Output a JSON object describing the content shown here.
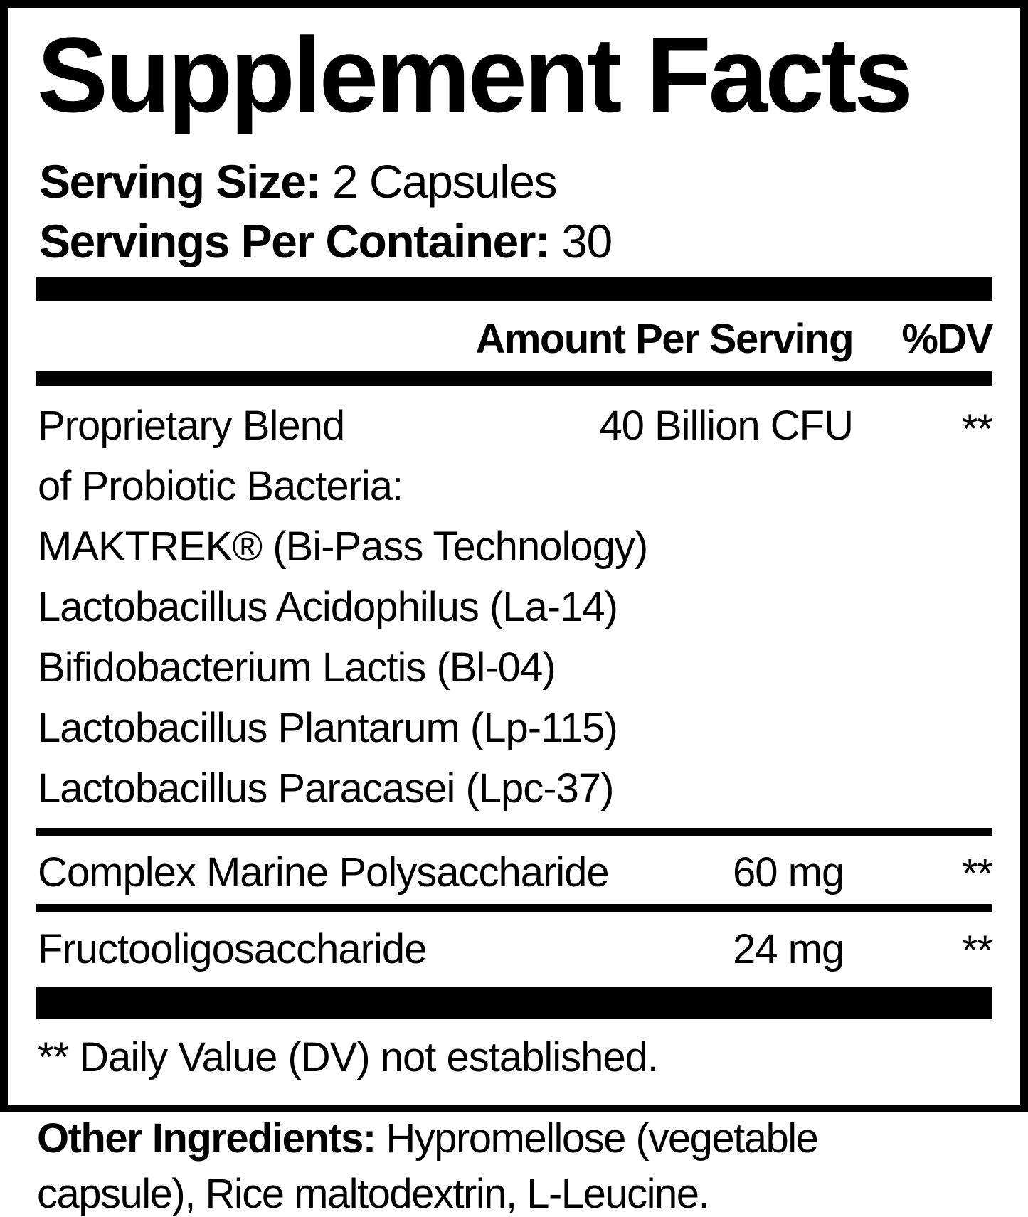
{
  "title": "Supplement Facts",
  "serving_size": {
    "label": "Serving Size:",
    "value": "2 Capsules"
  },
  "servings_per_container": {
    "label": "Servings Per Container:",
    "value": "30"
  },
  "header": {
    "amount": "Amount Per Serving",
    "dv": "%DV"
  },
  "blend": {
    "lines": [
      "Proprietary Blend",
      "of Probiotic Bacteria:",
      "MAKTREK® (Bi-Pass Technology)",
      "Lactobacillus Acidophilus (La-14)",
      "Bifidobacterium Lactis (Bl-04)",
      "Lactobacillus Plantarum (Lp-115)",
      "Lactobacillus Paracasei (Lpc-37)"
    ],
    "amount": "40 Billion CFU",
    "dv": "**"
  },
  "rows": [
    {
      "name": "Complex Marine Polysaccharide",
      "amount": "60 mg",
      "dv": "**"
    },
    {
      "name": "Fructooligosaccharide",
      "amount": "24 mg",
      "dv": "**"
    }
  ],
  "footnote": "** Daily Value (DV) not established.",
  "other_ingredients": {
    "label": "Other Ingredients:",
    "line1": "Hypromellose (vegetable",
    "line2": "capsule), Rice maltodextrin, L-Leucine."
  }
}
